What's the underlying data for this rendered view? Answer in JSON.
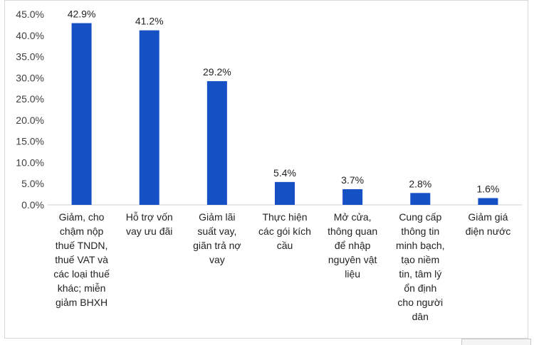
{
  "chart_data": {
    "type": "bar",
    "categories": [
      [
        "Giảm, cho",
        "chậm nộp",
        "thuế TNDN,",
        "thuế VAT và",
        "các loại thuế",
        "khác; miễn",
        "giảm BHXH"
      ],
      [
        "Hỗ trợ vốn",
        "vay ưu đãi"
      ],
      [
        "Giảm lãi",
        "suất vay,",
        "giãn trả nợ",
        "vay"
      ],
      [
        "Thực hiện",
        "các gói kích",
        "cầu"
      ],
      [
        "Mở cửa,",
        "thông quan",
        "để nhập",
        "nguyên vật",
        "liệu"
      ],
      [
        "Cung cấp",
        "thông tin",
        "minh bạch,",
        "tạo niềm",
        "tin, tâm lý",
        "ổn định",
        "cho người",
        "dân"
      ],
      [
        "Giảm giá",
        "điện nước"
      ]
    ],
    "values": [
      42.9,
      41.2,
      29.2,
      5.4,
      3.7,
      2.8,
      1.6
    ],
    "data_labels": [
      "42.9%",
      "41.2%",
      "29.2%",
      "5.4%",
      "3.7%",
      "2.8%",
      "1.6%"
    ],
    "ylim": [
      0,
      45
    ],
    "y_ticks": [
      "0.0%",
      "5.0%",
      "10.0%",
      "15.0%",
      "20.0%",
      "25.0%",
      "30.0%",
      "35.0%",
      "40.0%",
      "45.0%"
    ],
    "bar_color": "#1550c4",
    "grid": false
  }
}
